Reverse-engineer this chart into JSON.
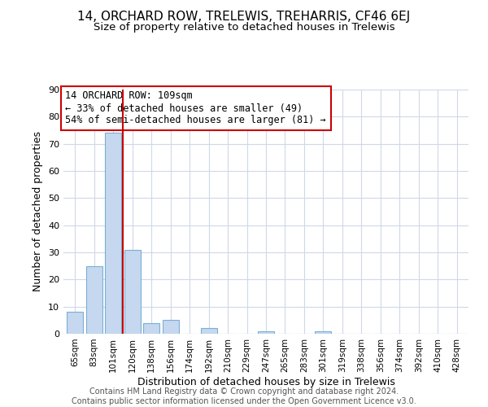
{
  "title": "14, ORCHARD ROW, TRELEWIS, TREHARRIS, CF46 6EJ",
  "subtitle": "Size of property relative to detached houses in Trelewis",
  "xlabel": "Distribution of detached houses by size in Trelewis",
  "ylabel": "Number of detached properties",
  "categories": [
    "65sqm",
    "83sqm",
    "101sqm",
    "120sqm",
    "138sqm",
    "156sqm",
    "174sqm",
    "192sqm",
    "210sqm",
    "229sqm",
    "247sqm",
    "265sqm",
    "283sqm",
    "301sqm",
    "319sqm",
    "338sqm",
    "356sqm",
    "374sqm",
    "392sqm",
    "410sqm",
    "428sqm"
  ],
  "values": [
    8,
    25,
    74,
    31,
    4,
    5,
    0,
    2,
    0,
    0,
    1,
    0,
    0,
    1,
    0,
    0,
    0,
    0,
    0,
    0,
    0
  ],
  "bar_color": "#c5d8f0",
  "bar_edge_color": "#7bafd4",
  "property_line_x": 2.5,
  "property_line_color": "#cc0000",
  "annotation_box_edge_color": "#cc0000",
  "annotation_line1": "14 ORCHARD ROW: 109sqm",
  "annotation_line2": "← 33% of detached houses are smaller (49)",
  "annotation_line3": "54% of semi-detached houses are larger (81) →",
  "ylim": [
    0,
    90
  ],
  "yticks": [
    0,
    10,
    20,
    30,
    40,
    50,
    60,
    70,
    80,
    90
  ],
  "footer_line1": "Contains HM Land Registry data © Crown copyright and database right 2024.",
  "footer_line2": "Contains public sector information licensed under the Open Government Licence v3.0.",
  "background_color": "#ffffff",
  "grid_color": "#d0d8e8",
  "title_fontsize": 11,
  "subtitle_fontsize": 9.5,
  "annotation_fontsize": 8.5,
  "footer_fontsize": 7
}
